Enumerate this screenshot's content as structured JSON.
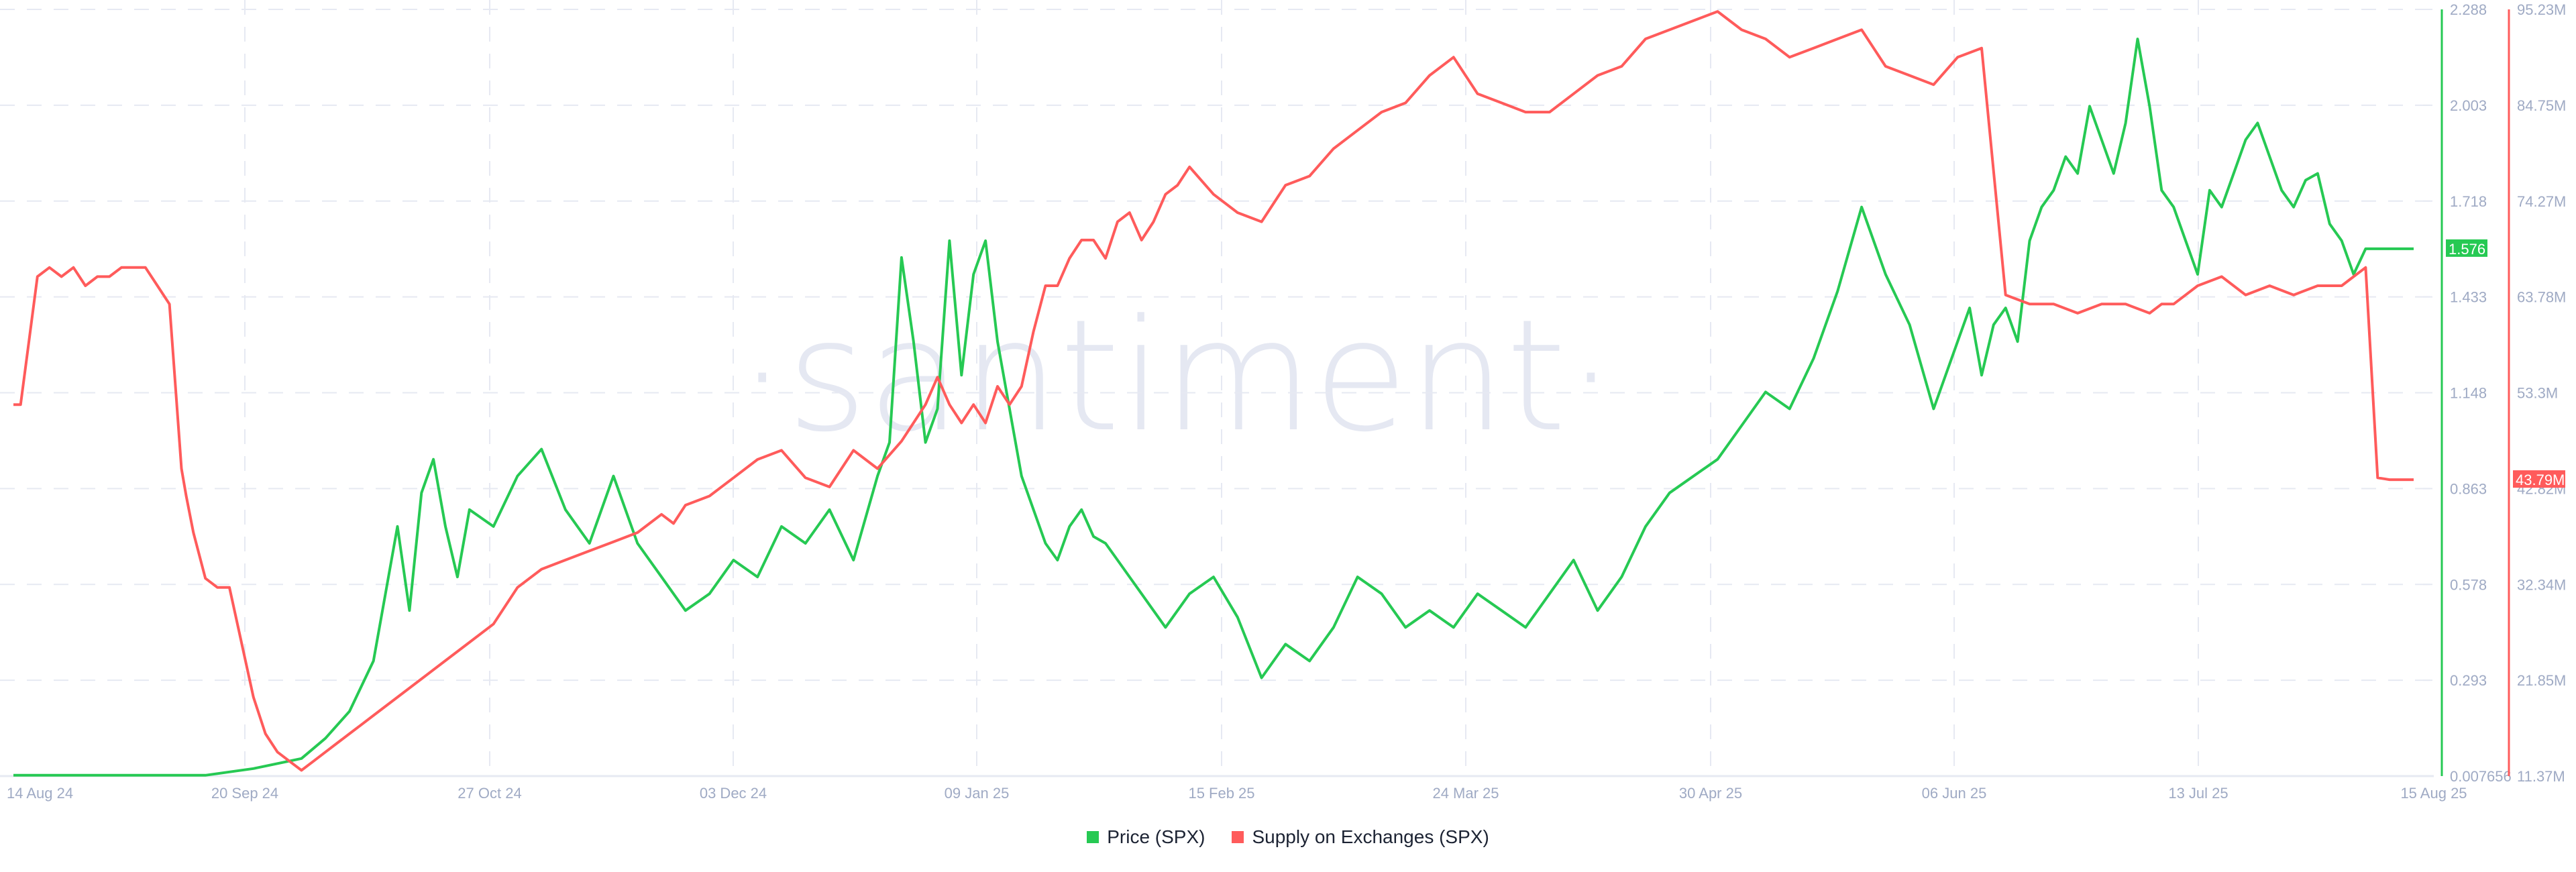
{
  "chart_data": {
    "type": "line",
    "title": "",
    "watermark": "·santiment·",
    "x_ticks": [
      "14 Aug 24",
      "20 Sep 24",
      "27 Oct 24",
      "03 Dec 24",
      "09 Jan 25",
      "15 Feb 25",
      "24 Mar 25",
      "30 Apr 25",
      "06 Jun 25",
      "13 Jul 25",
      "15 Aug 25"
    ],
    "y_left_ticks": [
      "2.288",
      "2.003",
      "1.718",
      "1.433",
      "1.148",
      "0.863",
      "0.578",
      "0.293",
      "0.007656"
    ],
    "y_right_ticks": [
      "95.23M",
      "84.75M",
      "74.27M",
      "63.78M",
      "53.3M",
      "42.82M",
      "32.34M",
      "21.85M",
      "11.37M"
    ],
    "y_left_range": [
      0.007656,
      2.288
    ],
    "y_right_range": [
      11.37,
      95.23
    ],
    "grid": true,
    "legend_position": "bottom",
    "series": [
      {
        "name": "Price (SPX)",
        "color": "#26c953",
        "axis": "left",
        "last_value_label": "1.576",
        "x_frac": [
          0,
          0.03,
          0.06,
          0.08,
          0.1,
          0.12,
          0.13,
          0.14,
          0.15,
          0.155,
          0.16,
          0.165,
          0.17,
          0.175,
          0.18,
          0.185,
          0.19,
          0.2,
          0.21,
          0.22,
          0.23,
          0.24,
          0.25,
          0.26,
          0.27,
          0.28,
          0.29,
          0.3,
          0.31,
          0.32,
          0.33,
          0.34,
          0.35,
          0.36,
          0.365,
          0.37,
          0.375,
          0.38,
          0.385,
          0.39,
          0.395,
          0.4,
          0.405,
          0.41,
          0.415,
          0.42,
          0.425,
          0.43,
          0.435,
          0.44,
          0.445,
          0.45,
          0.455,
          0.46,
          0.465,
          0.47,
          0.475,
          0.48,
          0.49,
          0.5,
          0.51,
          0.52,
          0.53,
          0.54,
          0.55,
          0.56,
          0.57,
          0.58,
          0.59,
          0.6,
          0.61,
          0.62,
          0.63,
          0.64,
          0.65,
          0.66,
          0.67,
          0.68,
          0.69,
          0.7,
          0.71,
          0.72,
          0.73,
          0.74,
          0.75,
          0.76,
          0.77,
          0.78,
          0.79,
          0.8,
          0.81,
          0.815,
          0.82,
          0.825,
          0.83,
          0.835,
          0.84,
          0.845,
          0.85,
          0.855,
          0.86,
          0.865,
          0.87,
          0.875,
          0.88,
          0.885,
          0.89,
          0.895,
          0.9,
          0.905,
          0.91,
          0.915,
          0.92,
          0.925,
          0.93,
          0.935,
          0.94,
          0.945,
          0.95,
          0.955,
          0.96,
          0.965,
          0.97,
          0.975,
          0.98,
          0.985,
          0.99,
          0.995,
          1.0
        ],
        "values": [
          0.01,
          0.01,
          0.01,
          0.01,
          0.03,
          0.06,
          0.12,
          0.2,
          0.35,
          0.55,
          0.75,
          0.5,
          0.85,
          0.95,
          0.75,
          0.6,
          0.8,
          0.75,
          0.9,
          0.98,
          0.8,
          0.7,
          0.9,
          0.7,
          0.6,
          0.5,
          0.55,
          0.65,
          0.6,
          0.75,
          0.7,
          0.8,
          0.65,
          0.9,
          1.0,
          1.55,
          1.3,
          1.0,
          1.1,
          1.6,
          1.2,
          1.5,
          1.6,
          1.3,
          1.1,
          0.9,
          0.8,
          0.7,
          0.65,
          0.75,
          0.8,
          0.72,
          0.7,
          0.65,
          0.6,
          0.55,
          0.5,
          0.45,
          0.55,
          0.6,
          0.48,
          0.3,
          0.4,
          0.35,
          0.45,
          0.6,
          0.55,
          0.45,
          0.5,
          0.45,
          0.55,
          0.5,
          0.45,
          0.55,
          0.65,
          0.5,
          0.6,
          0.75,
          0.85,
          0.9,
          0.95,
          1.05,
          1.15,
          1.1,
          1.25,
          1.45,
          1.7,
          1.5,
          1.35,
          1.1,
          1.3,
          1.4,
          1.2,
          1.35,
          1.4,
          1.3,
          1.6,
          1.7,
          1.75,
          1.85,
          1.8,
          2.0,
          1.9,
          1.8,
          1.95,
          2.2,
          2.0,
          1.75,
          1.7,
          1.6,
          1.5,
          1.75,
          1.7,
          1.8,
          1.9,
          1.95,
          1.85,
          1.75,
          1.7,
          1.78,
          1.8,
          1.65,
          1.6,
          1.5,
          1.576,
          1.576,
          1.576,
          1.576,
          1.576
        ]
      },
      {
        "name": "Supply on Exchanges (SPX)",
        "color": "#ff5b5b",
        "axis": "right",
        "last_value_label": "43.79M",
        "x_frac": [
          0,
          0.003,
          0.006,
          0.01,
          0.015,
          0.02,
          0.025,
          0.03,
          0.035,
          0.04,
          0.045,
          0.05,
          0.055,
          0.06,
          0.065,
          0.07,
          0.072,
          0.075,
          0.08,
          0.085,
          0.09,
          0.095,
          0.1,
          0.105,
          0.11,
          0.115,
          0.12,
          0.125,
          0.13,
          0.135,
          0.14,
          0.145,
          0.15,
          0.16,
          0.17,
          0.18,
          0.19,
          0.2,
          0.21,
          0.22,
          0.23,
          0.24,
          0.25,
          0.26,
          0.265,
          0.27,
          0.275,
          0.28,
          0.29,
          0.3,
          0.31,
          0.32,
          0.33,
          0.34,
          0.35,
          0.36,
          0.37,
          0.38,
          0.385,
          0.39,
          0.395,
          0.4,
          0.405,
          0.41,
          0.415,
          0.42,
          0.425,
          0.43,
          0.435,
          0.44,
          0.445,
          0.45,
          0.455,
          0.46,
          0.465,
          0.47,
          0.475,
          0.48,
          0.485,
          0.49,
          0.5,
          0.51,
          0.52,
          0.53,
          0.54,
          0.55,
          0.56,
          0.57,
          0.58,
          0.59,
          0.6,
          0.61,
          0.62,
          0.63,
          0.64,
          0.65,
          0.66,
          0.67,
          0.68,
          0.69,
          0.7,
          0.71,
          0.72,
          0.73,
          0.74,
          0.75,
          0.76,
          0.77,
          0.78,
          0.79,
          0.8,
          0.81,
          0.82,
          0.83,
          0.84,
          0.85,
          0.86,
          0.87,
          0.88,
          0.89,
          0.895,
          0.9,
          0.905,
          0.91,
          0.92,
          0.93,
          0.94,
          0.95,
          0.96,
          0.97,
          0.975,
          0.98,
          0.985,
          0.99,
          0.995,
          1.0
        ],
        "values": [
          52,
          52,
          58,
          66,
          67,
          66,
          67,
          65,
          66,
          66,
          67,
          67,
          67,
          65,
          63,
          45,
          42,
          38,
          33,
          32,
          32,
          26,
          20,
          16,
          14,
          13,
          12,
          13,
          14,
          15,
          16,
          17,
          18,
          20,
          22,
          24,
          26,
          28,
          32,
          34,
          35,
          36,
          37,
          38,
          39,
          40,
          39,
          41,
          42,
          44,
          46,
          47,
          44,
          43,
          47,
          45,
          48,
          52,
          55,
          52,
          50,
          52,
          50,
          54,
          52,
          54,
          60,
          65,
          65,
          68,
          70,
          70,
          68,
          72,
          73,
          70,
          72,
          75,
          76,
          78,
          75,
          73,
          72,
          76,
          77,
          80,
          82,
          84,
          85,
          88,
          90,
          86,
          85,
          84,
          84,
          86,
          88,
          89,
          92,
          93,
          94,
          95,
          93,
          92,
          90,
          91,
          92,
          93,
          89,
          88,
          87,
          90,
          91,
          64,
          63,
          63,
          62,
          63,
          63,
          62,
          63,
          63,
          64,
          65,
          66,
          64,
          65,
          64,
          65,
          65,
          66,
          67,
          44,
          43.79,
          43.79,
          43.79
        ]
      }
    ]
  },
  "legend": {
    "items": [
      {
        "label": "Price (SPX)",
        "color": "#26c953"
      },
      {
        "label": "Supply on Exchanges (SPX)",
        "color": "#ff5b5b"
      }
    ]
  }
}
